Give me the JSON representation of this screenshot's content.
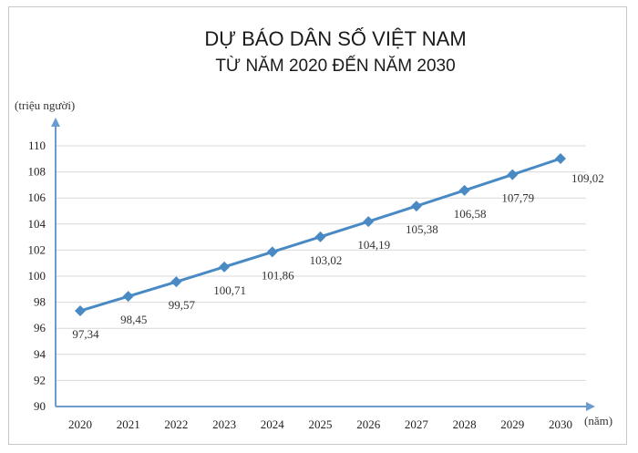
{
  "chart_data": {
    "type": "line",
    "title": "DỰ BÁO DÂN SỐ VIỆT NAM",
    "subtitle": "TỪ NĂM 2020 ĐẾN NĂM 2030",
    "ylabel": "(triệu người)",
    "xlabel": "(năm)",
    "categories": [
      "2020",
      "2021",
      "2022",
      "2023",
      "2024",
      "2025",
      "2026",
      "2027",
      "2028",
      "2029",
      "2030"
    ],
    "values": [
      97.34,
      98.45,
      99.57,
      100.71,
      101.86,
      103.02,
      104.19,
      105.38,
      106.58,
      107.79,
      109.02
    ],
    "data_labels": [
      "97,34",
      "98,45",
      "99,57",
      "100,71",
      "101,86",
      "103,02",
      "104,19",
      "105,38",
      "106,58",
      "107,79",
      "109,02"
    ],
    "ylim": [
      90,
      110
    ],
    "yticks": [
      "90",
      "92",
      "94",
      "96",
      "98",
      "100",
      "102",
      "104",
      "106",
      "108",
      "110"
    ],
    "grid": true,
    "line_color": "#4a8ac4"
  }
}
